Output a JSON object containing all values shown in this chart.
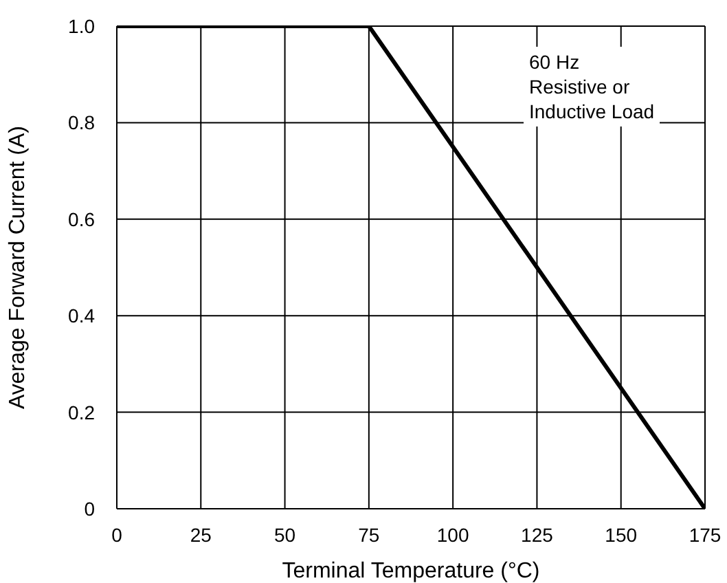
{
  "chart_data": {
    "type": "line",
    "xlabel": "Terminal Temperature (°C)",
    "ylabel": "Average Forward Current (A)",
    "x": [
      0,
      75,
      175
    ],
    "series": [
      {
        "color": "#000000",
        "values": [
          1,
          1,
          0
        ]
      }
    ],
    "xlim": [
      0,
      175
    ],
    "xticks": [
      0,
      25,
      50,
      75,
      100,
      125,
      150,
      175
    ],
    "ylim": [
      0,
      1
    ],
    "yticks": [
      0,
      {
        "value": 0.2,
        "label": "0.2"
      },
      {
        "value": 0.4,
        "label": "0.4"
      },
      {
        "value": 0.6,
        "label": "0.6"
      },
      {
        "value": 0.8,
        "label": "0.8"
      },
      {
        "value": 1,
        "label": "1.0"
      }
    ],
    "grid": true,
    "marker": "none",
    "line_style": "solid",
    "annotations": [
      "60 Hz\nResistive or\nInductive Load"
    ]
  }
}
